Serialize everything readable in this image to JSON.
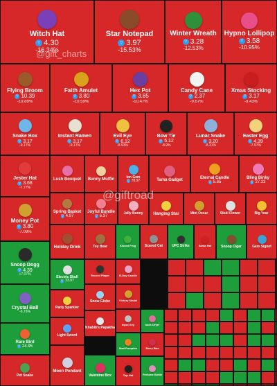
{
  "watermarks": [
    "@gift_charts",
    "@giftroad"
  ],
  "colors": {
    "negative": "#d62828",
    "positive": "#1e9e3a",
    "ton": "#2f9cf0"
  },
  "chart_data": {
    "type": "heatmap",
    "subtype": "treemap",
    "items": [
      {
        "name": "Witch Hat",
        "price": "4.30",
        "change": "-16.34%",
        "icon_color": "#7b3fb8"
      },
      {
        "name": "Star Notepad",
        "price": "3.97",
        "change": "-15.53%",
        "icon_color": "#8a4b2a"
      },
      {
        "name": "Winter Wreath",
        "price": "3.28",
        "change": "-12.53%",
        "icon_color": "#2f8f3a"
      },
      {
        "name": "Hypno Lollipop",
        "price": "3.58",
        "change": "-10.95%",
        "icon_color": "#e84f8a"
      },
      {
        "name": "Flying Broom",
        "price": "10.39",
        "change": "-10.89%",
        "icon_color": "#9a5a2a"
      },
      {
        "name": "Faith Amulet",
        "price": "3.80",
        "change": "-10.59%",
        "icon_color": "#d9a21a"
      },
      {
        "name": "Hex Pot",
        "price": "3.85",
        "change": "-10.47%",
        "icon_color": "#6b3fa0"
      },
      {
        "name": "Candy Cane",
        "price": "2.37",
        "change": "-9.67%",
        "icon_color": "#f2f2f2"
      },
      {
        "name": "Xmas Stocking",
        "price": "3.17",
        "change": "-9.43%",
        "icon_color": "#c81e1e"
      },
      {
        "name": "Snake Box",
        "price": "3.17",
        "change": "-9.17%",
        "icon_color": "#6fb7e8"
      },
      {
        "name": "Instant Ramen",
        "price": "3.17",
        "change": "-9.17%",
        "icon_color": "#e8e0d0"
      },
      {
        "name": "Evil Eye",
        "price": "6.12",
        "change": "-8.93%",
        "icon_color": "#f0c040"
      },
      {
        "name": "Bow Tie",
        "price": "5.12",
        "change": "-8.9%",
        "icon_color": "#222222"
      },
      {
        "name": "Lunar Snake",
        "price": "3.20",
        "change": "-8.31%",
        "icon_color": "#8fb0d8"
      },
      {
        "name": "Easter Egg",
        "price": "4.39",
        "change": "-7.97%",
        "icon_color": "#f2d27a"
      },
      {
        "name": "Jester Hat",
        "price": "3.68",
        "change": "-7.77%",
        "icon_color": "#e23b3b"
      },
      {
        "name": "Lush Bouquet",
        "price": "",
        "change": "",
        "icon_color": "#e870a8"
      },
      {
        "name": "Bunny Muffin",
        "price": "",
        "change": "",
        "icon_color": "#f0d0a0"
      },
      {
        "name": "Ion Gem",
        "price": "78.97",
        "change": "",
        "icon_color": "#4fb0e8"
      },
      {
        "name": "Tama Gadget",
        "price": "",
        "change": "",
        "icon_color": "#e06080"
      },
      {
        "name": "Eternal Candle",
        "price": "5.65",
        "change": "",
        "icon_color": "#f0a020"
      },
      {
        "name": "Bling Binky",
        "price": "27.23",
        "change": "",
        "icon_color": "#f07ab8"
      },
      {
        "name": "Money Pot",
        "price": "3.80",
        "change": "-7.09%",
        "icon_color": "#d0a030"
      },
      {
        "name": "Spring Basket",
        "price": "4.97",
        "change": "",
        "icon_color": "#b07a40"
      },
      {
        "name": "Joyful Bundle",
        "price": "6.37",
        "change": "",
        "icon_color": "#f08090"
      },
      {
        "name": "Jelly Bunny",
        "price": "",
        "change": "",
        "icon_color": "#f0b0c0"
      },
      {
        "name": "Hanging Star",
        "price": "",
        "change": "",
        "icon_color": "#f0d040"
      },
      {
        "name": "Mini Oscar",
        "price": "",
        "change": "",
        "icon_color": "#d0a030"
      },
      {
        "name": "Skull Flower",
        "price": "",
        "change": "",
        "icon_color": "#e0e0e0"
      },
      {
        "name": "Big Year",
        "price": "",
        "change": "",
        "icon_color": "#f0c030"
      },
      {
        "name": "Snoop Dogg",
        "price": "4.39",
        "change": "+7.07%",
        "icon_color": "#2a2a2a"
      },
      {
        "name": "Holiday Drink",
        "price": "",
        "change": "",
        "icon_color": "#a05030"
      },
      {
        "name": "Toy Bear",
        "price": "",
        "change": "",
        "icon_color": "#a07040"
      },
      {
        "name": "Kissed Frog",
        "price": "",
        "change": "",
        "icon_color": "#40b040"
      },
      {
        "name": "Scared Cat",
        "price": "",
        "change": "",
        "icon_color": "#909090"
      },
      {
        "name": "UFC Strike",
        "price": "",
        "change": "",
        "icon_color": "#303030"
      },
      {
        "name": "Santa Hat",
        "price": "",
        "change": "",
        "icon_color": "#d02020"
      },
      {
        "name": "Snoop Cigar",
        "price": "",
        "change": "",
        "icon_color": "#805030"
      },
      {
        "name": "Gem Signet",
        "price": "",
        "change": "",
        "icon_color": "#40a0d0"
      },
      {
        "name": "Electric Skull",
        "price": "23.97",
        "change": "",
        "icon_color": "#e0e0e0"
      },
      {
        "name": "Record Player",
        "price": "",
        "change": "",
        "icon_color": "#303030"
      },
      {
        "name": "B-Day Candle",
        "price": "",
        "change": "",
        "icon_color": "#f0a0c0"
      },
      {
        "name": "Crystal Ball",
        "price": "",
        "change": "-6.76%",
        "icon_color": "#8060c0"
      },
      {
        "name": "Party Sparkler",
        "price": "",
        "change": "",
        "icon_color": "#f0d040"
      },
      {
        "name": "Snow Globe",
        "price": "",
        "change": "",
        "icon_color": "#a0d0f0"
      },
      {
        "name": "Victory Medal",
        "price": "",
        "change": "",
        "icon_color": "#d0a030"
      },
      {
        "name": "Rare Bird",
        "price": "24.95",
        "change": "",
        "icon_color": "#f06030"
      },
      {
        "name": "Light Sword",
        "price": "",
        "change": "",
        "icon_color": "#60a0f0"
      },
      {
        "name": "Input Key",
        "price": "",
        "change": "",
        "icon_color": "#c0c0c0"
      },
      {
        "name": "Ionic Dryer",
        "price": "",
        "change": "",
        "icon_color": "#e070a0"
      },
      {
        "name": "Khabib's Papakha",
        "price": "",
        "change": "",
        "icon_color": "#e8e8e8"
      },
      {
        "name": "Mad Pumpkin",
        "price": "",
        "change": "",
        "icon_color": "#f08020"
      },
      {
        "name": "Berry Box",
        "price": "",
        "change": "",
        "icon_color": "#d03050"
      },
      {
        "name": "Pet Snake",
        "price": "",
        "change": "",
        "icon_color": "#50a050"
      },
      {
        "name": "Moon Pendant",
        "price": "",
        "change": "",
        "icon_color": "#d0d0e0"
      },
      {
        "name": "Valentine Box",
        "price": "",
        "change": "",
        "icon_color": "#e03060"
      },
      {
        "name": "Top Hat",
        "price": "",
        "change": "",
        "icon_color": "#202020"
      },
      {
        "name": "Perfume Bottle",
        "price": "",
        "change": "",
        "icon_color": "#e090c0"
      }
    ]
  }
}
